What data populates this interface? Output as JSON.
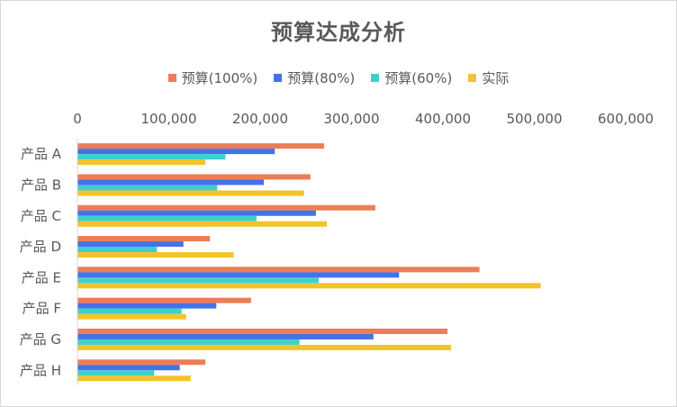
{
  "chart_data": {
    "type": "bar",
    "orientation": "horizontal",
    "title": "预算达成分析",
    "xlabel": "",
    "ylabel": "",
    "xlim": [
      0,
      600000
    ],
    "x_ticks": [
      "0",
      "100,000",
      "200,000",
      "300,000",
      "400,000",
      "500,000",
      "600,000"
    ],
    "tick_values": [
      0,
      100000,
      200000,
      300000,
      400000,
      500000,
      600000
    ],
    "legend_position": "top",
    "categories": [
      "产品 A",
      "产品 B",
      "产品 C",
      "产品 D",
      "产品 E",
      "产品 F",
      "产品 G",
      "产品 H"
    ],
    "series": [
      {
        "name": "预算(100%)",
        "color": "#ED7D55",
        "values": [
          270000,
          255000,
          326000,
          145000,
          440000,
          190000,
          405000,
          140000
        ]
      },
      {
        "name": "预算(80%)",
        "color": "#4472E8",
        "values": [
          216000,
          204000,
          261000,
          116000,
          352000,
          152000,
          324000,
          112000
        ]
      },
      {
        "name": "预算(60%)",
        "color": "#3ED1CC",
        "values": [
          162000,
          153000,
          196000,
          87000,
          264000,
          114000,
          243000,
          84000
        ]
      },
      {
        "name": "实际",
        "color": "#F4C22B",
        "values": [
          140000,
          248000,
          273000,
          171000,
          507000,
          119000,
          409000,
          124000
        ]
      }
    ]
  }
}
